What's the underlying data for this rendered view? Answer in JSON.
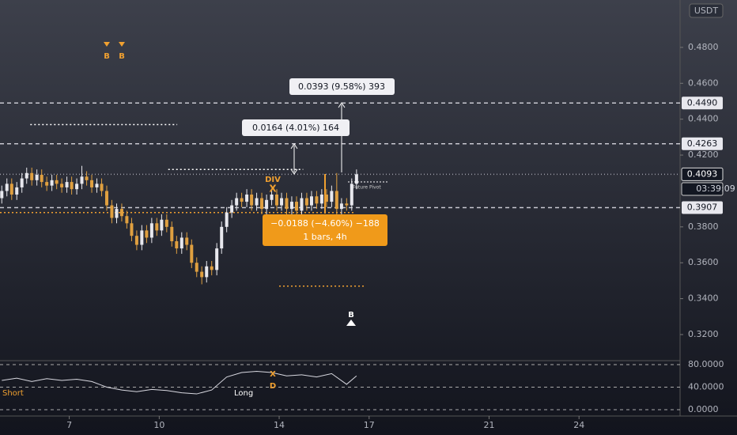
{
  "chart_data": {
    "type": "candlestick",
    "currency": "USDT",
    "x": [
      4.75,
      4.92,
      5.08,
      5.25,
      5.42,
      5.58,
      5.75,
      5.92,
      6.08,
      6.25,
      6.42,
      6.58,
      6.75,
      6.92,
      7.08,
      7.25,
      7.42,
      7.58,
      7.75,
      7.92,
      8.08,
      8.25,
      8.42,
      8.58,
      8.75,
      8.92,
      9.08,
      9.25,
      9.42,
      9.58,
      9.75,
      9.92,
      10.08,
      10.25,
      10.42,
      10.58,
      10.75,
      10.92,
      11.08,
      11.25,
      11.42,
      11.58,
      11.75,
      11.92,
      12.08,
      12.25,
      12.42,
      12.58,
      12.75,
      12.92,
      13.08,
      13.25,
      13.42,
      13.58,
      13.75,
      13.92,
      14.08,
      14.25,
      14.42,
      14.58,
      14.75,
      14.92,
      15.08,
      15.25,
      15.42,
      15.58,
      15.75,
      15.92,
      16.08,
      16.25,
      16.42,
      16.58
    ],
    "open": [
      0.396,
      0.4,
      0.404,
      0.398,
      0.402,
      0.407,
      0.41,
      0.406,
      0.409,
      0.405,
      0.403,
      0.406,
      0.404,
      0.402,
      0.405,
      0.401,
      0.404,
      0.408,
      0.406,
      0.402,
      0.404,
      0.4,
      0.392,
      0.385,
      0.39,
      0.386,
      0.382,
      0.375,
      0.37,
      0.378,
      0.374,
      0.382,
      0.378,
      0.384,
      0.38,
      0.372,
      0.368,
      0.374,
      0.37,
      0.36,
      0.355,
      0.352,
      0.358,
      0.356,
      0.368,
      0.38,
      0.388,
      0.392,
      0.396,
      0.394,
      0.398,
      0.392,
      0.396,
      0.39,
      0.395,
      0.398,
      0.392,
      0.396,
      0.39,
      0.394,
      0.389,
      0.396,
      0.392,
      0.397,
      0.393,
      0.398,
      0.394,
      0.4,
      0.39,
      0.393,
      0.392,
      0.404
    ],
    "high": [
      0.403,
      0.407,
      0.407,
      0.405,
      0.41,
      0.413,
      0.413,
      0.412,
      0.412,
      0.408,
      0.409,
      0.409,
      0.407,
      0.408,
      0.408,
      0.407,
      0.414,
      0.411,
      0.409,
      0.407,
      0.407,
      0.403,
      0.395,
      0.393,
      0.393,
      0.389,
      0.385,
      0.378,
      0.381,
      0.381,
      0.385,
      0.385,
      0.387,
      0.387,
      0.383,
      0.375,
      0.377,
      0.377,
      0.373,
      0.363,
      0.358,
      0.361,
      0.361,
      0.371,
      0.383,
      0.391,
      0.395,
      0.399,
      0.399,
      0.401,
      0.401,
      0.399,
      0.399,
      0.398,
      0.401,
      0.401,
      0.399,
      0.399,
      0.397,
      0.397,
      0.399,
      0.399,
      0.4,
      0.4,
      0.401,
      0.401,
      0.403,
      0.41,
      0.396,
      0.396,
      0.407,
      0.412
    ],
    "low": [
      0.393,
      0.397,
      0.395,
      0.395,
      0.399,
      0.404,
      0.403,
      0.403,
      0.402,
      0.4,
      0.4,
      0.401,
      0.399,
      0.399,
      0.398,
      0.398,
      0.401,
      0.403,
      0.399,
      0.399,
      0.397,
      0.389,
      0.382,
      0.382,
      0.383,
      0.379,
      0.372,
      0.367,
      0.367,
      0.371,
      0.371,
      0.375,
      0.375,
      0.377,
      0.369,
      0.365,
      0.365,
      0.367,
      0.357,
      0.352,
      0.348,
      0.349,
      0.353,
      0.353,
      0.365,
      0.377,
      0.385,
      0.389,
      0.391,
      0.391,
      0.389,
      0.389,
      0.387,
      0.387,
      0.392,
      0.389,
      0.389,
      0.387,
      0.387,
      0.386,
      0.386,
      0.389,
      0.389,
      0.39,
      0.39,
      0.391,
      0.391,
      0.387,
      0.387,
      0.389,
      0.389,
      0.401
    ],
    "close": [
      0.4,
      0.404,
      0.398,
      0.402,
      0.407,
      0.41,
      0.406,
      0.409,
      0.405,
      0.403,
      0.406,
      0.404,
      0.402,
      0.405,
      0.401,
      0.404,
      0.408,
      0.406,
      0.402,
      0.404,
      0.4,
      0.392,
      0.385,
      0.39,
      0.386,
      0.382,
      0.375,
      0.37,
      0.378,
      0.374,
      0.382,
      0.378,
      0.384,
      0.38,
      0.372,
      0.368,
      0.374,
      0.37,
      0.36,
      0.355,
      0.352,
      0.358,
      0.356,
      0.368,
      0.38,
      0.388,
      0.392,
      0.396,
      0.394,
      0.398,
      0.392,
      0.396,
      0.39,
      0.395,
      0.398,
      0.392,
      0.396,
      0.39,
      0.394,
      0.389,
      0.396,
      0.392,
      0.397,
      0.393,
      0.398,
      0.394,
      0.4,
      0.39,
      0.393,
      0.392,
      0.404,
      0.4093
    ],
    "up_color": "#e8e8ee",
    "down_color": "#e0a040",
    "xlim": [
      4.69,
      27.37
    ],
    "xticks": [
      7,
      10,
      14,
      17,
      21,
      24
    ],
    "ylim": [
      0.3059,
      0.5064
    ],
    "yticks": [
      {
        "value": 0.48,
        "label": "0.4800"
      },
      {
        "value": 0.46,
        "label": "0.4600"
      },
      {
        "value": 0.44,
        "label": "0.4400"
      },
      {
        "value": 0.42,
        "label": "0.4200"
      },
      {
        "value": 0.38,
        "label": "0.3800"
      },
      {
        "value": 0.36,
        "label": "0.3600"
      },
      {
        "value": 0.34,
        "label": "0.3400"
      },
      {
        "value": 0.32,
        "label": "0.3200"
      }
    ],
    "price_labels": [
      {
        "value": 0.449,
        "label": "0.4490"
      },
      {
        "value": 0.4263,
        "label": "0.4263"
      },
      {
        "value": 0.4093,
        "label": "0.4093"
      },
      {
        "value": 0.3907,
        "label": "0.3907"
      }
    ],
    "countdown": "03:39:09",
    "levels": [
      {
        "value": 0.449,
        "from": 4.69,
        "to": 27.37,
        "color": "#c8c8d0",
        "dash": "5 4"
      },
      {
        "value": 0.4263,
        "from": 4.69,
        "to": 27.37,
        "color": "#c8c8d0",
        "dash": "5 4"
      },
      {
        "value": 0.3907,
        "from": 4.69,
        "to": 27.37,
        "color": "#c8c8d0",
        "dash": "5 4"
      },
      {
        "value": 0.4093,
        "from": 4.69,
        "to": 27.37,
        "color": "#9a9aa6",
        "dash": "1 3"
      },
      {
        "value": 0.437,
        "from": 5.7,
        "to": 10.6,
        "color": "#ffffff",
        "dash": "2 3"
      },
      {
        "value": 0.412,
        "from": 10.3,
        "to": 14.8,
        "color": "#ffffff",
        "dash": "2 3"
      },
      {
        "value": 0.388,
        "from": 4.69,
        "to": 16.5,
        "color": "#f0a030",
        "dash": "2 3"
      },
      {
        "value": 0.347,
        "from": 14.0,
        "to": 16.9,
        "color": "#f0a030",
        "dash": "2 3"
      }
    ],
    "measures": [
      {
        "label": "0.0393 (9.58%) 393"
      },
      {
        "label": "0.0164 (4.01%) 164"
      },
      {
        "label": "−0.0188 (−4.60%) −188",
        "sub": "1 bars, 4h"
      }
    ],
    "annotations": {
      "div": "DIV",
      "cross": "X",
      "buy": "B",
      "pivot": "Future Pivot",
      "short": "Short",
      "long": "Long",
      "d": "D"
    },
    "indicator": {
      "x": [
        4.75,
        5.25,
        5.75,
        6.25,
        6.75,
        7.25,
        7.75,
        8.25,
        8.75,
        9.25,
        9.75,
        10.25,
        10.75,
        11.25,
        11.75,
        12.25,
        12.75,
        13.25,
        13.75,
        14.25,
        14.75,
        15.25,
        15.75,
        16.25,
        16.58
      ],
      "values": [
        52,
        56,
        50,
        55,
        52,
        54,
        50,
        40,
        35,
        32,
        36,
        34,
        30,
        28,
        35,
        58,
        66,
        68,
        66,
        60,
        62,
        58,
        64,
        45,
        60
      ],
      "color": "#d8d8e0",
      "ylim": [
        -9.8,
        84.2
      ],
      "yticks": [
        {
          "value": 0,
          "label": "0.0000"
        },
        {
          "value": 40,
          "label": "40.0000"
        },
        {
          "value": 80,
          "label": "80.0000"
        }
      ]
    }
  }
}
